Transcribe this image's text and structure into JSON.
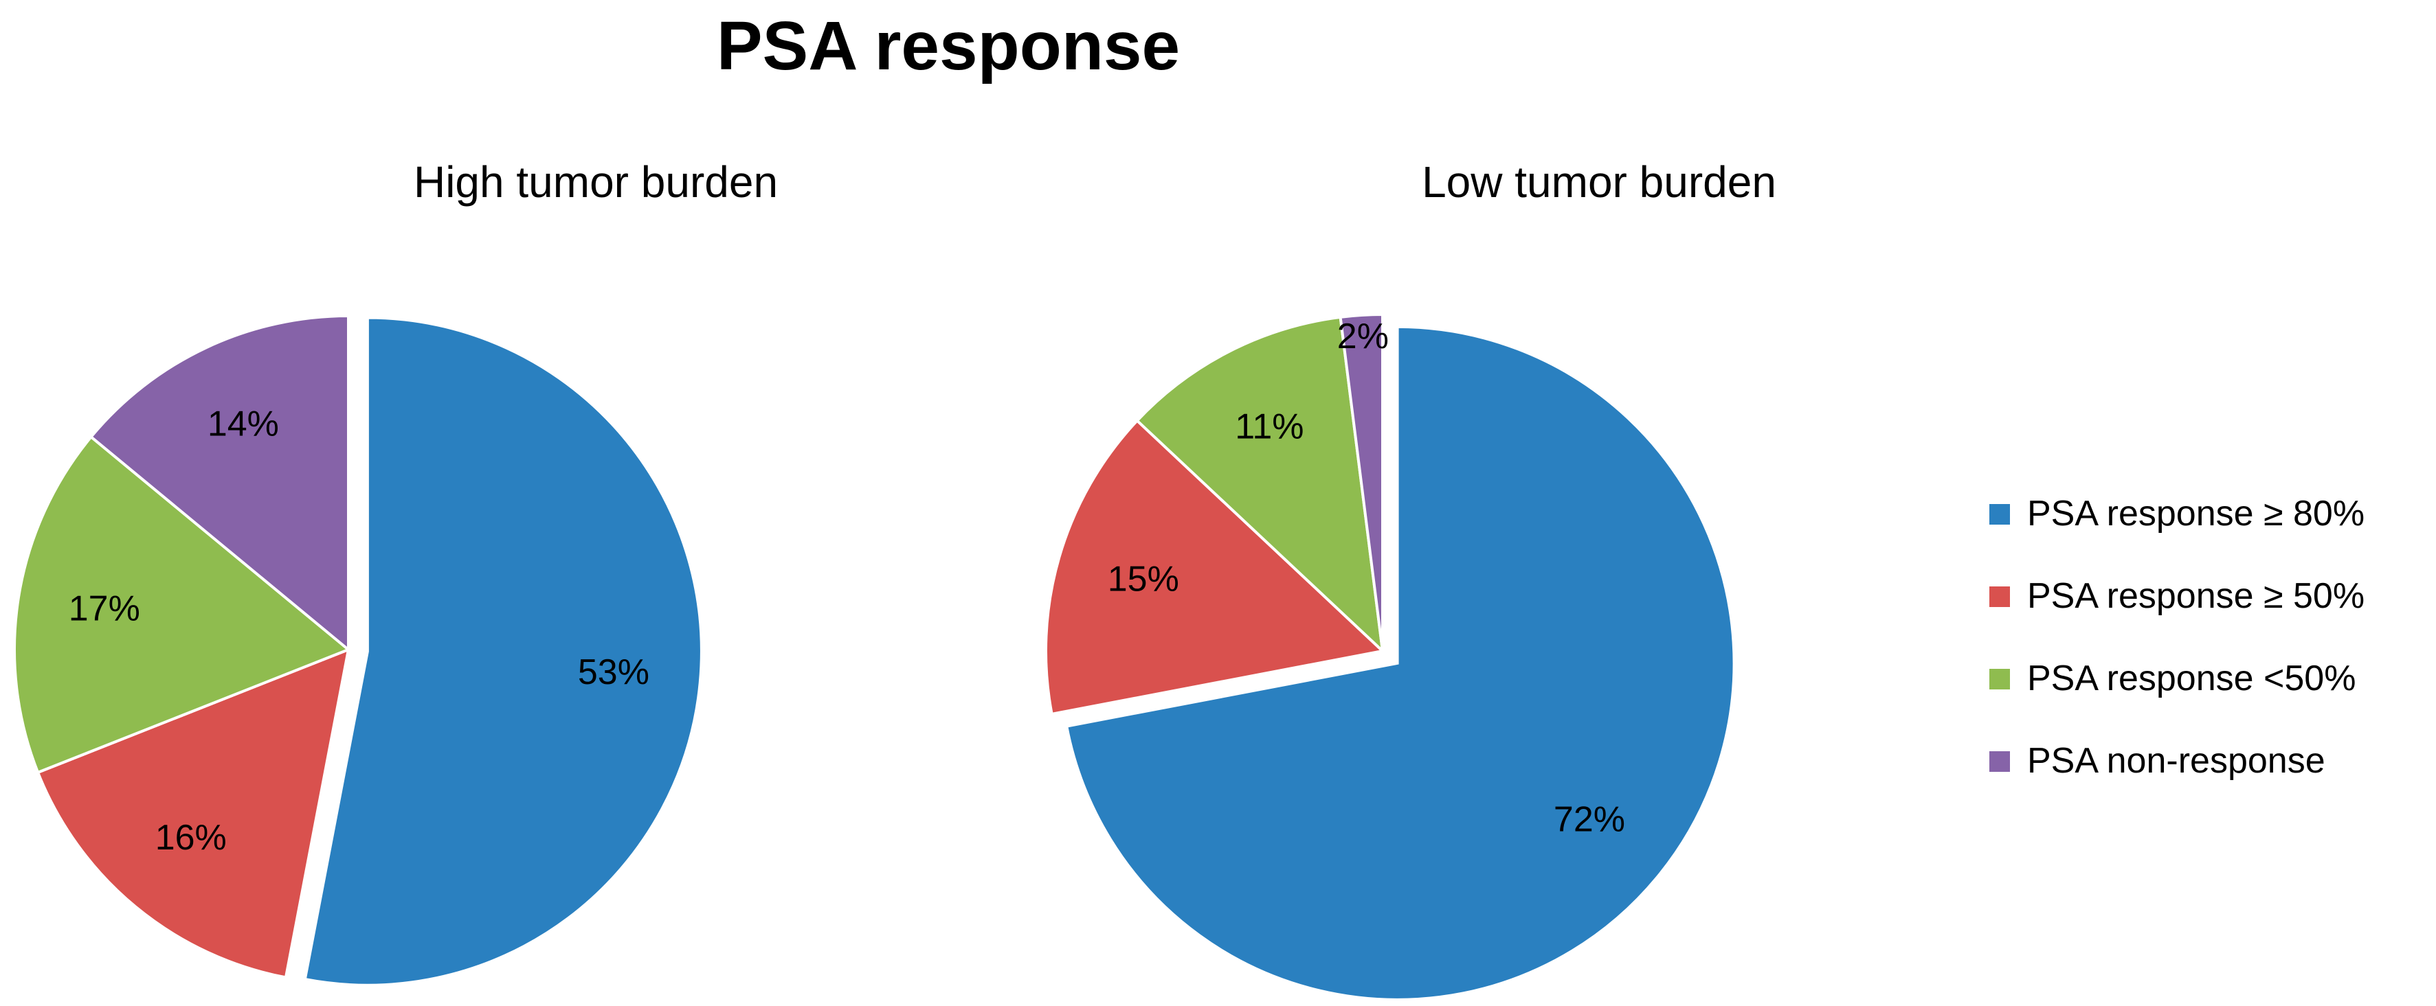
{
  "title": "PSA response",
  "chart_data": [
    {
      "type": "pie",
      "title": "High tumor burden",
      "labels": [
        "PSA response ≥ 80%",
        "PSA response ≥ 50%",
        "PSA response <50%",
        "PSA non-response"
      ],
      "values": [
        53,
        16,
        17,
        14
      ],
      "data_labels": [
        "53%",
        "16%",
        "17%",
        "14%"
      ],
      "colors": [
        "#2A80C0",
        "#D9514E",
        "#8FBC4F",
        "#8663A8"
      ],
      "exploded": "PSA response ≥ 80%"
    },
    {
      "type": "pie",
      "title": "Low tumor burden",
      "labels": [
        "PSA response ≥ 80%",
        "PSA response ≥ 50%",
        "PSA response <50%",
        "PSA non-response"
      ],
      "values": [
        72,
        15,
        11,
        2
      ],
      "data_labels": [
        "72%",
        "15%",
        "11%",
        "2%"
      ],
      "colors": [
        "#2A80C0",
        "#D9514E",
        "#8FBC4F",
        "#8663A8"
      ],
      "exploded": "PSA response ≥ 80%"
    }
  ],
  "legend": {
    "placement": "right",
    "items": [
      {
        "label": "PSA response ≥ 80%",
        "color": "#2A80C0"
      },
      {
        "label": "PSA response ≥ 50%",
        "color": "#D9514E"
      },
      {
        "label": "PSA response <50%",
        "color": "#8FBC4F"
      },
      {
        "label": "PSA non-response",
        "color": "#8663A8"
      }
    ]
  }
}
